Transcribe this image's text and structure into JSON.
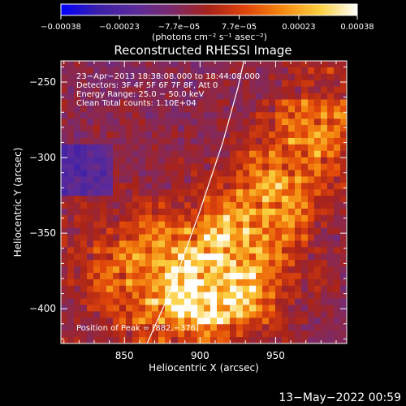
{
  "chart_data": {
    "type": "heatmap",
    "title": "Reconstructed RHESSI Image",
    "xlabel": "Heliocentric X (arcsec)",
    "ylabel": "Heliocentric Y (arcsec)",
    "xlim": [
      808,
      997
    ],
    "ylim": [
      -423,
      -236
    ],
    "xticks": [
      850,
      900,
      950
    ],
    "xtick_labels": [
      "850",
      "900",
      "950"
    ],
    "yticks": [
      -400,
      -350,
      -300,
      -250
    ],
    "ytick_labels": [
      "−400",
      "−350",
      "−300",
      "−250"
    ],
    "colorbar": {
      "range": [
        -0.00038,
        0.00038
      ],
      "ticks": [
        -0.00038,
        -0.00023,
        -7.7e-05,
        7.7e-05,
        0.00023,
        0.00038
      ],
      "tick_labels": [
        "−0.00038",
        "−0.00023",
        "−7.7e−05",
        "7.7e−05",
        "0.00023",
        "0.00038"
      ],
      "unit_label": "(photons cm⁻² s⁻¹ asec⁻²)",
      "colors": [
        "#0000ff",
        "#3b1fa8",
        "#5a2a9a",
        "#7b2a6a",
        "#a8231a",
        "#e0450a",
        "#f58a10",
        "#fbd040",
        "#ffffff"
      ]
    },
    "info_lines": [
      "23−Apr−2013 18:38:08.000 to 18:44:08.000",
      "Detectors: 3F 4F 5F 6F 7F 8F, Att 0",
      "Energy Range: 25.0 − 50.0 keV",
      "Clean    Total counts: 1.10E+04"
    ],
    "peak_label": "Position of Peak = [882,−376]",
    "peak": [
      882,
      -376
    ],
    "limb": [
      [
        865,
        -423
      ],
      [
        882,
        -385
      ],
      [
        900,
        -335
      ],
      [
        915,
        -290
      ],
      [
        925,
        -254
      ],
      [
        929,
        -236
      ]
    ]
  },
  "footer": {
    "timestamp": "13−May−2022 00:59"
  }
}
